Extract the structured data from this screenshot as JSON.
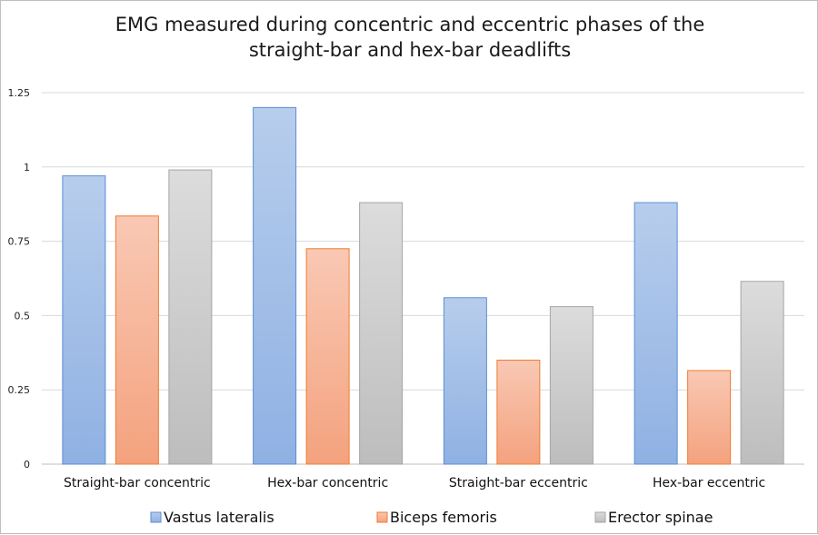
{
  "colors": {
    "vastus_top": "#b7cdec",
    "vastus_bottom": "#8fb1e3",
    "vastus_stroke": "#5b8ed6",
    "biceps_top": "#f9c8b4",
    "biceps_bottom": "#f4a27e",
    "biceps_stroke": "#ed7d31",
    "erector_top": "#dcdcdc",
    "erector_bottom": "#bdbdbd",
    "erector_stroke": "#a5a5a5",
    "grid": "#d9d9d9",
    "axis": "#bfbfbf"
  },
  "chart_data": {
    "type": "bar",
    "title": "EMG measured during concentric and eccentric phases of the straight-bar and hex-bar deadlifts",
    "title_lines": [
      "EMG measured during concentric and eccentric phases of the",
      "straight-bar and hex-bar deadlifts"
    ],
    "categories": [
      "Straight-bar concentric",
      "Hex-bar concentric",
      "Straight-bar eccentric",
      "Hex-bar eccentric"
    ],
    "series": [
      {
        "name": "Vastus lateralis",
        "values": [
          0.97,
          1.2,
          0.56,
          0.88
        ]
      },
      {
        "name": "Biceps femoris",
        "values": [
          0.835,
          0.725,
          0.35,
          0.315
        ]
      },
      {
        "name": "Erector spinae",
        "values": [
          0.99,
          0.88,
          0.53,
          0.615
        ]
      }
    ],
    "ylim": [
      0,
      1.25
    ],
    "yticks": [
      "0",
      "0.25",
      "0.5",
      "0.75",
      "1",
      "1.25"
    ],
    "ytick_values": [
      0,
      0.25,
      0.5,
      0.75,
      1,
      1.25
    ],
    "xlabel": "",
    "ylabel": "",
    "grid": true,
    "legend_position": "bottom"
  }
}
